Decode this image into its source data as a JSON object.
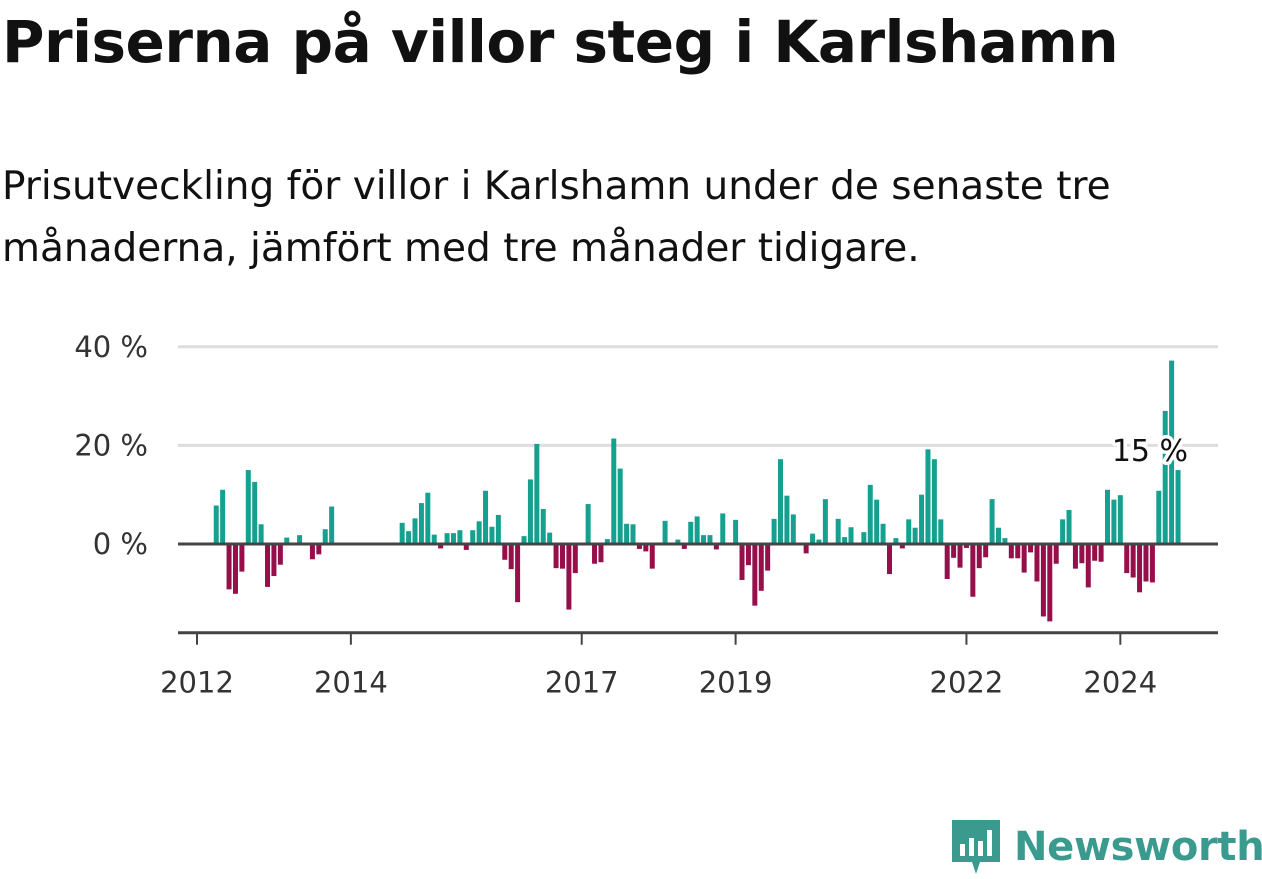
{
  "title": "Priserna på villor steg i Karlshamn",
  "subtitle": "Prisutveckling för villor i Karlshamn under de senaste tre månaderna, jämfört med tre månader tidigare.",
  "brand": {
    "name": "Newsworthy",
    "color": "#3a9a8e",
    "icon": "newsworthy-logo-icon"
  },
  "chart_data": {
    "type": "bar",
    "title": "",
    "xlabel": "",
    "ylabel": "",
    "ylim": [
      -18,
      40
    ],
    "y_ticks": [
      0,
      20,
      40
    ],
    "y_tick_labels": [
      "0 %",
      "20 %",
      "40 %"
    ],
    "x_ticks": [
      {
        "year": 2012,
        "label": "2012"
      },
      {
        "year": 2014,
        "label": "2014"
      },
      {
        "year": 2017,
        "label": "2017"
      },
      {
        "year": 2019,
        "label": "2019"
      },
      {
        "year": 2022,
        "label": "2022"
      },
      {
        "year": 2024,
        "label": "2024"
      }
    ],
    "grid": true,
    "colors": {
      "positive": "#16a090",
      "negative": "#960e4a",
      "zero_line": "#444444",
      "grid": "#dddddd"
    },
    "annotation": {
      "text": "15 %",
      "value": 15
    },
    "start": "2012-04",
    "values": [
      7.8,
      11,
      -9.2,
      -10.1,
      -5.6,
      15,
      12.6,
      4,
      -8.7,
      -6.5,
      -4.2,
      1.3,
      0,
      1.8,
      0,
      -3.1,
      -2.1,
      3,
      7.6,
      0,
      0,
      0,
      0,
      0,
      0,
      0,
      0,
      0,
      0,
      4.3,
      2.6,
      5.2,
      8.3,
      10.4,
      1.9,
      -0.9,
      2.2,
      2.2,
      2.8,
      -1.2,
      2.8,
      4.6,
      10.8,
      3.5,
      5.9,
      -3.2,
      -5.1,
      -11.8,
      1.6,
      13.1,
      20.3,
      7.1,
      2.3,
      -4.9,
      -5,
      -13.3,
      -5.9,
      0,
      8.1,
      -4,
      -3.7,
      1,
      21.4,
      15.3,
      4.1,
      4,
      -1,
      -1.5,
      -5,
      0,
      4.7,
      0,
      0.9,
      -1,
      4.5,
      5.6,
      1.8,
      1.8,
      -1.1,
      6.2,
      0,
      4.9,
      -7.3,
      -4.3,
      -12.5,
      -9.5,
      -5.4,
      5.1,
      17.2,
      9.8,
      6,
      0,
      -1.9,
      2.1,
      0.9,
      9.1,
      0,
      5.1,
      1.4,
      3.4,
      0,
      2.4,
      12,
      9,
      4.1,
      -6.1,
      1.2,
      -0.9,
      5,
      3.3,
      10,
      19.2,
      17.2,
      5,
      -7.1,
      -2.8,
      -4.8,
      -0.8,
      -10.7,
      -4.9,
      -2.7,
      9.1,
      3.3,
      1.2,
      -2.9,
      -2.9,
      -5.8,
      -1.7,
      -7.6,
      -14.7,
      -15.7,
      -4,
      5,
      6.9,
      -5,
      -3.9,
      -8.8,
      -3.4,
      -3.6,
      11,
      9,
      9.9,
      -5.9,
      -6.8,
      -9.8,
      -7.6,
      -7.8,
      10.8,
      27,
      37.2,
      15
    ]
  }
}
